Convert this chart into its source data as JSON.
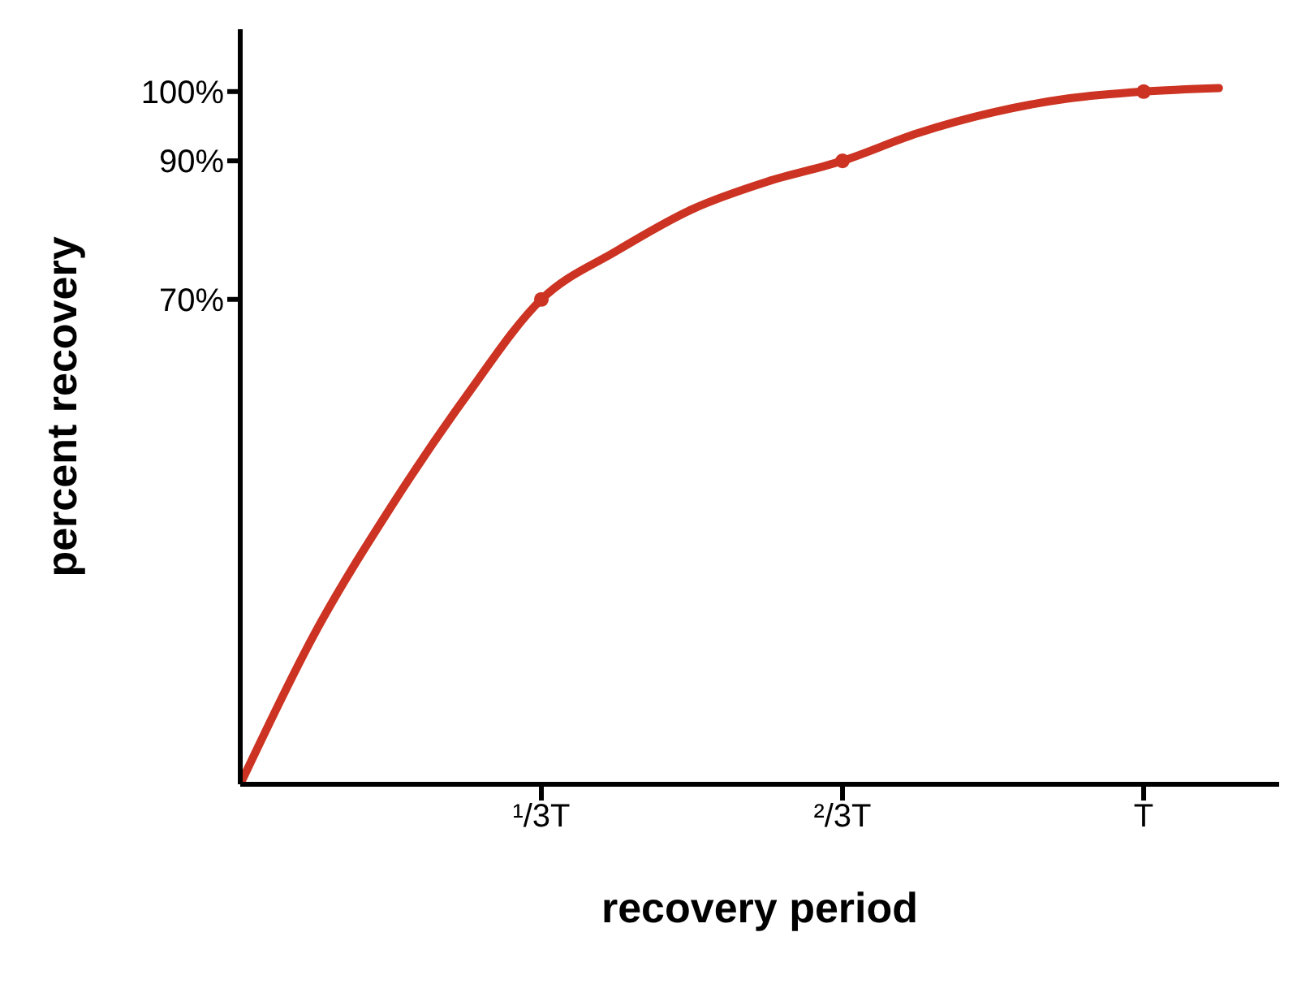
{
  "chart_data": {
    "type": "line",
    "xlabel": "recovery period",
    "ylabel": "percent recovery",
    "categories": [
      null,
      null,
      null,
      null,
      "¹/3T",
      null,
      null,
      null,
      "²/3T",
      null,
      null,
      null,
      "T",
      null
    ],
    "ylim": [
      0,
      109
    ],
    "yticks": [
      {
        "value": 70,
        "label": "70%"
      },
      {
        "value": 90,
        "label": "90%"
      },
      {
        "value": 100,
        "label": "100%"
      }
    ],
    "grid": false,
    "legend": false,
    "series": [
      {
        "color": "#cc3322",
        "marker": "none",
        "values": [
          0,
          22,
          40,
          56,
          70,
          77,
          83,
          87,
          90,
          94,
          97,
          99,
          100,
          100.5
        ]
      },
      {
        "type": "scatter",
        "color": "#cc3322",
        "marker": "circle",
        "values": [
          null,
          null,
          null,
          null,
          70,
          null,
          null,
          null,
          90,
          null,
          null,
          null,
          100,
          null
        ]
      }
    ]
  }
}
